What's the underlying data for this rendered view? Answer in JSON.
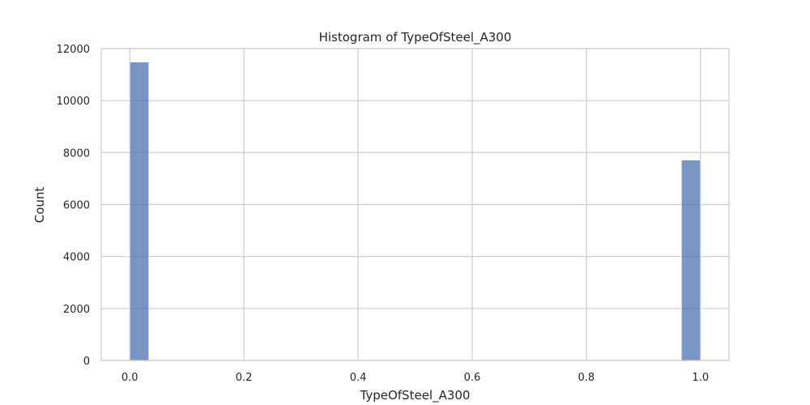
{
  "chart_data": {
    "type": "bar",
    "title": "Histogram of TypeOfSteel_A300",
    "xlabel": "TypeOfSteel_A300",
    "ylabel": "Count",
    "xlim": [
      -0.05,
      1.05
    ],
    "ylim": [
      0,
      12000
    ],
    "x_ticks": [
      "0.0",
      "0.2",
      "0.4",
      "0.6",
      "0.8",
      "1.0"
    ],
    "y_ticks": [
      "0",
      "2000",
      "4000",
      "6000",
      "8000",
      "10000",
      "12000"
    ],
    "grid": true,
    "bin_width": 0.0333,
    "bins": [
      {
        "x_start": 0.0,
        "x_end": 0.0333,
        "count": 11480
      },
      {
        "x_start": 0.9667,
        "x_end": 1.0,
        "count": 7710
      }
    ],
    "colors": {
      "bar": "#4c72b0",
      "grid": "#cccccc",
      "frame": "#cccccc"
    }
  }
}
